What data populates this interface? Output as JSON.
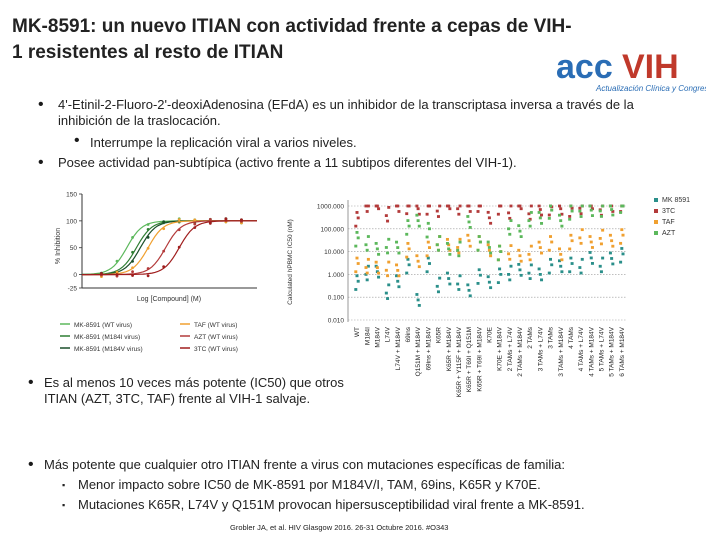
{
  "title": "MK-8591: un nuevo ITIAN con actividad frente a cepas de VIH-1 resistentes al resto de ITIAN",
  "logo": {
    "acc": "acc",
    "vih": "VIH",
    "tagline": "Actualización Clínica y Congresos"
  },
  "bullets": {
    "b1": "4'-Etinil-2-Fluoro-2'-deoxiAdenosina (EFdA) es un inhibidor de la transcriptasa inversa a través de la inhibición de la traslocación.",
    "b1_sub": "Interrumpe la replicación viral a varios niveles.",
    "b2": "Posee actividad pan-subtípica (activo frente a 11 subtipos diferentes del VIH-1).",
    "b3": "Es al menos 10 veces más potente (IC50) que otros ITIAN (AZT, 3TC, TAF) frente al VIH-1 salvaje.",
    "b4": "Más potente que cualquier otro ITIAN frente a virus con mutaciones específicas de familia:",
    "b4_subs": [
      "Menor impacto sobre IC50 de MK-8591 por M184V/I, TAM, 69ins, K65R y K70E.",
      "Mutaciones K65R, L74V y Q151M provocan hipersusceptibilidad viral frente a MK-8591."
    ]
  },
  "citation": "Grobler JA, et al. HIV Glasgow 2016. 26-31 Octubre 2016. #O343",
  "colors": {
    "mk": "#2a8f8a",
    "tc3": "#b33a3a",
    "taf": "#f0a030",
    "azt": "#5cb85c",
    "mk_m184": "#2e7d32",
    "mk_m184v": "#1b4f2a"
  },
  "chart_data": [
    {
      "type": "line",
      "title": "",
      "xlabel": "Log [Compound] (M)",
      "ylabel": "% Inhibition",
      "ylim": [
        -25,
        150
      ],
      "yticks": [
        "150",
        "100",
        "50",
        "0",
        "-25"
      ],
      "series": [
        {
          "name": "MK-8591 (WT virus)",
          "ec50_log": -10.7,
          "color": "#5cb85c"
        },
        {
          "name": "MK-8591 (M184I virus)",
          "ec50_log": -10.2,
          "color": "#2e7d32"
        },
        {
          "name": "MK-8591 (M184V virus)",
          "ec50_log": -10.0,
          "color": "#1b4f2a"
        },
        {
          "name": "TAF (WT virus)",
          "ec50_log": -9.6,
          "color": "#f0a030"
        },
        {
          "name": "AZT (WT virus)",
          "ec50_log": -8.7,
          "color": "#b33a3a"
        },
        {
          "name": "3TC (WT virus)",
          "ec50_log": -8.0,
          "color": "#a01e1e"
        }
      ]
    },
    {
      "type": "scatter",
      "ylabel": "Calculated hPBMC IC50 (nM)",
      "yscale": "log",
      "ylim": [
        0.01,
        1000
      ],
      "yticks": [
        "1000.000",
        "100.000",
        "10.000",
        "1.000",
        "0.100",
        "0.010"
      ],
      "legend": [
        "MK 8591",
        "3TC",
        "TAF",
        "AZT"
      ],
      "categories": [
        "WT",
        "M184I",
        "M184V",
        "L74V",
        "L74V + M184V",
        "69ins",
        "Q151M + M184V",
        "69ins + M184V",
        "K65R",
        "K65R + M184V",
        "K65R + Y115F + M184V",
        "K65R + T69I + Q151M",
        "K65R + T69I + M184V",
        "K70E",
        "K70E + M184V",
        "2 TAMs + L74V",
        "2 TAMs + M184V",
        "2 TAMs",
        "3 TAMs + L74V",
        "3 TAMs",
        "3 TAMs + M184V",
        "4 TAMs",
        "4 TAMs + L74V",
        "4 TAMs + M184V",
        "5 TAMs + L74V",
        "5 TAMs + M184V",
        "6 TAMs + M184V"
      ],
      "series": [
        {
          "name": "MK 8591",
          "values": [
            0.5,
            1.0,
            1.0,
            0.2,
            0.5,
            2.0,
            0.1,
            3.0,
            0.3,
            0.5,
            0.5,
            0.2,
            0.7,
            0.6,
            1.0,
            1.0,
            1.2,
            1.5,
            1.0,
            2.0,
            3.0,
            3.0,
            2.0,
            4.0,
            3.0,
            5.0,
            6.0
          ]
        },
        {
          "name": "3TC",
          "values": [
            300,
            1000,
            1000,
            500,
            1000,
            800,
            1000,
            1000,
            600,
            1000,
            1000,
            1000,
            1000,
            400,
            1000,
            500,
            1000,
            600,
            700,
            700,
            1000,
            800,
            800,
            1000,
            900,
            1000,
            1000
          ]
        },
        {
          "name": "TAF",
          "values": [
            3,
            2,
            1.5,
            2,
            1.5,
            10,
            5,
            15,
            20,
            15,
            20,
            30,
            20,
            15,
            10,
            8,
            5,
            10,
            15,
            20,
            10,
            30,
            40,
            20,
            50,
            30,
            40
          ]
        },
        {
          "name": "AZT",
          "values": [
            40,
            20,
            10,
            20,
            15,
            100,
            300,
            100,
            20,
            10,
            15,
            200,
            20,
            20,
            10,
            100,
            60,
            300,
            300,
            500,
            300,
            600,
            600,
            500,
            800,
            700,
            900
          ]
        }
      ]
    }
  ]
}
